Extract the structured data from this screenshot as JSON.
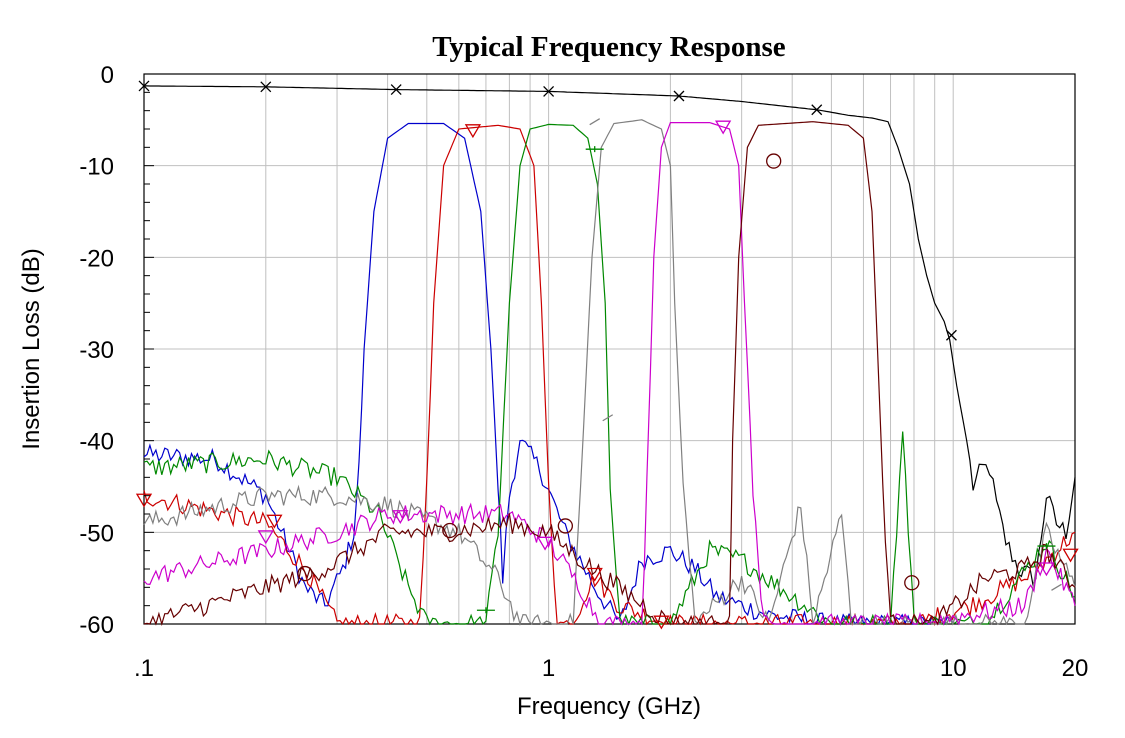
{
  "chart_data": {
    "type": "line",
    "title": "Typical Frequency Response",
    "xlabel": "Frequency (GHz)",
    "ylabel": "Insertion Loss (dB)",
    "x_scale": "log",
    "xlim": [
      0.1,
      20
    ],
    "ylim": [
      -60,
      0
    ],
    "x_ticks": [
      {
        "value": 0.1,
        "label": ".1"
      },
      {
        "value": 1,
        "label": "1"
      },
      {
        "value": 10,
        "label": "10"
      },
      {
        "value": 20,
        "label": "20"
      }
    ],
    "y_ticks": [
      {
        "value": 0,
        "label": "0"
      },
      {
        "value": -10,
        "label": "-10"
      },
      {
        "value": -20,
        "label": "-20"
      },
      {
        "value": -30,
        "label": "-30"
      },
      {
        "value": -40,
        "label": "-40"
      },
      {
        "value": -50,
        "label": "-50"
      },
      {
        "value": -60,
        "label": "-60"
      }
    ],
    "grid": true,
    "legend": "none",
    "series": [
      {
        "color": "#000000",
        "marker": "x",
        "points": [
          [
            0.1,
            -1.3
          ],
          [
            0.2,
            -1.4
          ],
          [
            0.42,
            -1.7
          ],
          [
            1,
            -1.9
          ],
          [
            2.1,
            -2.4
          ],
          [
            3,
            -3
          ],
          [
            4.6,
            -3.9
          ],
          [
            5.5,
            -4.5
          ],
          [
            6.3,
            -4.8
          ],
          [
            6.9,
            -5.2
          ],
          [
            7.3,
            -8
          ],
          [
            7.8,
            -12
          ],
          [
            8.2,
            -18
          ],
          [
            8.6,
            -22
          ],
          [
            9.0,
            -25
          ],
          [
            9.5,
            -27
          ],
          [
            9.8,
            -29
          ],
          [
            10.2,
            -34
          ],
          [
            10.8,
            -40
          ],
          [
            11.2,
            -45
          ],
          [
            11.8,
            -43
          ],
          [
            12.3,
            -43
          ],
          [
            12.8,
            -47
          ],
          [
            13.5,
            -51
          ],
          [
            14.5,
            -54
          ],
          [
            16,
            -55
          ],
          [
            17,
            -46
          ],
          [
            18,
            -49
          ],
          [
            19,
            -50
          ],
          [
            20,
            -44
          ]
        ],
        "markers": [
          [
            0.1,
            -1.3
          ],
          [
            0.2,
            -1.4
          ],
          [
            0.42,
            -1.7
          ],
          [
            1,
            -1.9
          ],
          [
            2.1,
            -2.4
          ],
          [
            4.6,
            -3.9
          ],
          [
            9.9,
            -28.5
          ]
        ]
      },
      {
        "color": "#0000cc",
        "marker": "none",
        "points": [
          [
            0.1,
            -41.5
          ],
          [
            0.15,
            -42
          ],
          [
            0.2,
            -46
          ],
          [
            0.25,
            -56
          ],
          [
            0.28,
            -58
          ],
          [
            0.31,
            -54
          ],
          [
            0.33,
            -50
          ],
          [
            0.34,
            -43
          ],
          [
            0.35,
            -30
          ],
          [
            0.37,
            -15
          ],
          [
            0.4,
            -7
          ],
          [
            0.45,
            -5.4
          ],
          [
            0.55,
            -5.4
          ],
          [
            0.62,
            -7
          ],
          [
            0.68,
            -15
          ],
          [
            0.72,
            -30
          ],
          [
            0.75,
            -45
          ],
          [
            0.77,
            -55
          ],
          [
            0.8,
            -46
          ],
          [
            0.85,
            -40
          ],
          [
            0.95,
            -43
          ],
          [
            1.1,
            -50
          ],
          [
            1.3,
            -56
          ],
          [
            1.5,
            -60
          ],
          [
            1.7,
            -53
          ],
          [
            2.0,
            -52
          ],
          [
            2.3,
            -54
          ],
          [
            2.6,
            -57
          ],
          [
            3.0,
            -58
          ],
          [
            3.5,
            -59
          ],
          [
            5,
            -60
          ],
          [
            8,
            -60
          ],
          [
            10,
            -60
          ]
        ],
        "markers": []
      },
      {
        "color": "#cc0000",
        "marker": "triangle-down",
        "points": [
          [
            0.1,
            -46
          ],
          [
            0.2,
            -49
          ],
          [
            0.25,
            -54
          ],
          [
            0.3,
            -60
          ],
          [
            0.48,
            -60
          ],
          [
            0.5,
            -45
          ],
          [
            0.52,
            -25
          ],
          [
            0.55,
            -10
          ],
          [
            0.6,
            -6
          ],
          [
            0.75,
            -5.6
          ],
          [
            0.85,
            -6
          ],
          [
            0.92,
            -10
          ],
          [
            0.96,
            -25
          ],
          [
            1.0,
            -45
          ],
          [
            1.05,
            -60
          ],
          [
            1.15,
            -60
          ],
          [
            1.22,
            -57
          ],
          [
            1.3,
            -55
          ],
          [
            1.5,
            -58
          ],
          [
            2,
            -60
          ],
          [
            5,
            -60
          ],
          [
            8,
            -60
          ],
          [
            11,
            -58
          ],
          [
            15,
            -55
          ],
          [
            17,
            -53
          ],
          [
            20,
            -50
          ]
        ],
        "markers": [
          [
            0.1,
            -46.5
          ],
          [
            0.21,
            -48.8
          ],
          [
            0.65,
            -6.2
          ],
          [
            1.3,
            -54.6
          ],
          [
            1.9,
            -59.8
          ],
          [
            19.5,
            -52.5
          ]
        ]
      },
      {
        "color": "#008800",
        "marker": "plus",
        "points": [
          [
            0.1,
            -43
          ],
          [
            0.2,
            -42
          ],
          [
            0.3,
            -44
          ],
          [
            0.38,
            -48
          ],
          [
            0.45,
            -56
          ],
          [
            0.5,
            -60
          ],
          [
            0.7,
            -60
          ],
          [
            0.75,
            -50
          ],
          [
            0.8,
            -25
          ],
          [
            0.85,
            -10
          ],
          [
            0.9,
            -6
          ],
          [
            1.0,
            -5.5
          ],
          [
            1.15,
            -5.6
          ],
          [
            1.25,
            -7
          ],
          [
            1.32,
            -12
          ],
          [
            1.38,
            -25
          ],
          [
            1.42,
            -45
          ],
          [
            1.5,
            -60
          ],
          [
            2.0,
            -60
          ],
          [
            2.5,
            -52
          ],
          [
            3,
            -53
          ],
          [
            4,
            -57
          ],
          [
            5,
            -60
          ],
          [
            7,
            -60
          ],
          [
            7.5,
            -39
          ],
          [
            8,
            -60
          ],
          [
            12,
            -60
          ],
          [
            17,
            -51
          ],
          [
            20,
            -57
          ]
        ],
        "markers": [
          [
            1.3,
            -8.2
          ],
          [
            0.7,
            -58.5
          ],
          [
            17,
            -51.5
          ]
        ]
      },
      {
        "color": "#808080",
        "marker": "dash",
        "points": [
          [
            0.1,
            -49
          ],
          [
            0.2,
            -46
          ],
          [
            0.3,
            -46
          ],
          [
            0.4,
            -47
          ],
          [
            0.6,
            -50
          ],
          [
            0.75,
            -55
          ],
          [
            0.85,
            -60
          ],
          [
            1.15,
            -60
          ],
          [
            1.2,
            -45
          ],
          [
            1.28,
            -20
          ],
          [
            1.35,
            -8
          ],
          [
            1.45,
            -5.4
          ],
          [
            1.7,
            -5
          ],
          [
            1.9,
            -6
          ],
          [
            2.0,
            -10
          ],
          [
            2.05,
            -25
          ],
          [
            2.15,
            -45
          ],
          [
            2.3,
            -60
          ],
          [
            3,
            -55
          ],
          [
            3.5,
            -60
          ],
          [
            4.2,
            -47
          ],
          [
            4.5,
            -60
          ],
          [
            5.3,
            -48
          ],
          [
            5.6,
            -60
          ],
          [
            8,
            -60
          ],
          [
            15,
            -60
          ],
          [
            17,
            -50
          ],
          [
            20,
            -56
          ]
        ],
        "markers": [
          [
            1.3,
            -5.2
          ],
          [
            1.4,
            -37.5
          ],
          [
            18,
            -56
          ]
        ]
      },
      {
        "color": "#cc00cc",
        "marker": "triangle-down",
        "points": [
          [
            0.1,
            -55
          ],
          [
            0.2,
            -52
          ],
          [
            0.3,
            -50
          ],
          [
            0.4,
            -48
          ],
          [
            0.6,
            -48
          ],
          [
            0.8,
            -48
          ],
          [
            1.0,
            -51
          ],
          [
            1.2,
            -56
          ],
          [
            1.35,
            -60
          ],
          [
            1.7,
            -60
          ],
          [
            1.75,
            -45
          ],
          [
            1.82,
            -20
          ],
          [
            1.9,
            -8
          ],
          [
            2.0,
            -5.3
          ],
          [
            2.5,
            -5.3
          ],
          [
            2.8,
            -6
          ],
          [
            2.95,
            -10
          ],
          [
            3.05,
            -25
          ],
          [
            3.2,
            -45
          ],
          [
            3.4,
            -60
          ],
          [
            5,
            -60
          ],
          [
            8,
            -60
          ],
          [
            15,
            -58
          ],
          [
            17,
            -52
          ],
          [
            20,
            -58
          ]
        ],
        "markers": [
          [
            0.2,
            -50.5
          ],
          [
            0.43,
            -48.3
          ],
          [
            0.98,
            -51.2
          ],
          [
            2.7,
            -5.8
          ],
          [
            17,
            -54
          ]
        ]
      },
      {
        "color": "#660000",
        "marker": "circle",
        "points": [
          [
            0.1,
            -60
          ],
          [
            0.2,
            -56
          ],
          [
            0.28,
            -54
          ],
          [
            0.4,
            -50
          ],
          [
            0.55,
            -50
          ],
          [
            0.8,
            -49
          ],
          [
            1.0,
            -50
          ],
          [
            1.2,
            -53
          ],
          [
            1.6,
            -57
          ],
          [
            2.0,
            -60
          ],
          [
            2.8,
            -60
          ],
          [
            2.85,
            -40
          ],
          [
            2.95,
            -20
          ],
          [
            3.1,
            -8
          ],
          [
            3.3,
            -5.6
          ],
          [
            4.5,
            -5.2
          ],
          [
            5.5,
            -5.6
          ],
          [
            6.0,
            -7
          ],
          [
            6.3,
            -15
          ],
          [
            6.5,
            -30
          ],
          [
            6.7,
            -45
          ],
          [
            7.0,
            -60
          ],
          [
            9,
            -60
          ],
          [
            12,
            -55
          ],
          [
            15,
            -54
          ],
          [
            17,
            -52
          ],
          [
            20,
            -56
          ]
        ],
        "markers": [
          [
            0.25,
            -54.5
          ],
          [
            0.57,
            -49.8
          ],
          [
            1.1,
            -49.3
          ],
          [
            3.6,
            -9.5
          ],
          [
            7.9,
            -55.5
          ]
        ]
      }
    ]
  }
}
